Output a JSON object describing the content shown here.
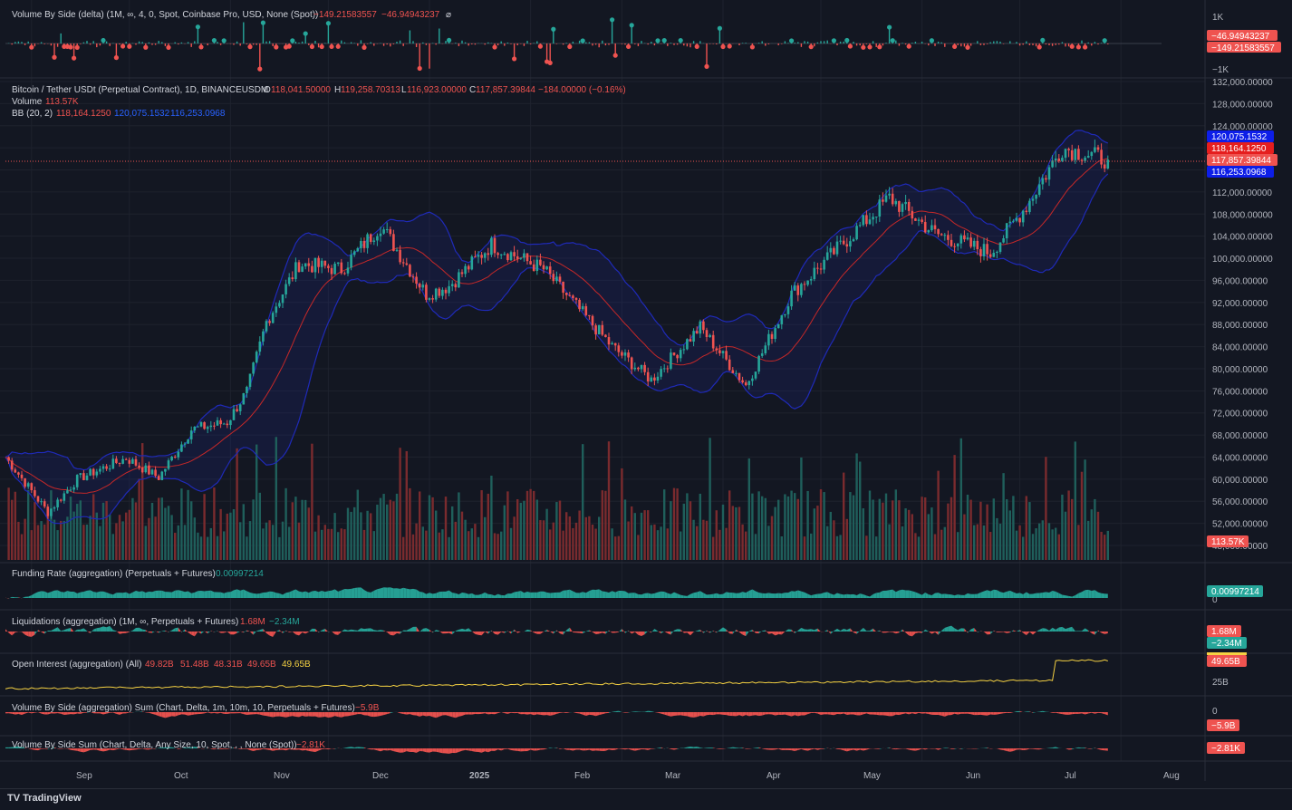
{
  "footer": {
    "brand": "TradingView",
    "brand_icon": "TV"
  },
  "colors": {
    "up": "#26a69a",
    "down": "#ef5350",
    "bb_band": "#1f2ab8",
    "bb_basis": "#c62828",
    "oi_line": "#f5d142",
    "bg": "#131722",
    "grid": "#1e222d"
  },
  "panes": {
    "delta": {
      "title": "Volume By Side (delta) (1M, ∞, 4, 0, Spot, Coinbase Pro, USD, None (Spot))",
      "v1": "−149.21583557",
      "v2": "−46.94943237",
      "v3": "⌀",
      "axis": [
        "1K",
        "−1K"
      ],
      "tags": [
        "−46.94943237",
        "−149.21583557"
      ]
    },
    "main": {
      "title": "Bitcoin / Tether USDt (Perpetual Contract), 1D, BINANCEUSDM",
      "o_label": "O",
      "o": "118,041.50000",
      "h_label": "H",
      "h": "119,258.70313",
      "l_label": "L",
      "l": "116,923.00000",
      "c_label": "C",
      "c": "117,857.39844",
      "chg": "−184.00000 (−0.16%)",
      "volume_label": "Volume",
      "volume": "113.57K",
      "bb_label": "BB (20, 2)",
      "bb_basis": "118,164.1250",
      "bb_upper": "120,075.1532",
      "bb_lower": "116,253.0968",
      "axis": [
        "132,000.00000",
        "128,000.00000",
        "124,000.00000",
        "120,000.00000",
        "116,000.00000",
        "112,000.00000",
        "108,000.00000",
        "104,000.00000",
        "100,000.00000",
        "96,000.00000",
        "92,000.00000",
        "88,000.00000",
        "84,000.00000",
        "80,000.00000",
        "76,000.00000",
        "72,000.00000",
        "68,000.00000",
        "64,000.00000",
        "60,000.00000",
        "56,000.00000",
        "52,000.00000",
        "48,000.00000"
      ],
      "tags": {
        "upper": "120,075.1532",
        "basis": "118,164.1250",
        "close": "117,857.39844",
        "lower": "116,253.0968",
        "volume": "113.57K"
      }
    },
    "funding": {
      "title": "Funding Rate (aggregation) (Perpetuals + Futures)",
      "value": "0.00997214",
      "tag": "0.00997214",
      "axis0": "0"
    },
    "liq": {
      "title": "Liquidations (aggregation) (1M, ∞, Perpetuals + Futures)",
      "v1": "1.68M",
      "v2": "−2.34M",
      "tags": [
        "1.68M",
        "−2.34M"
      ]
    },
    "oi": {
      "title": "Open Interest (aggregation) (All)",
      "o": "49.82B",
      "h": "51.48B",
      "l": "48.31B",
      "c": "49.65B",
      "last": "49.65B",
      "tag": "49.65B",
      "axis": "25B"
    },
    "vbs_agg": {
      "title": "Volume By Side (aggregation) Sum (Chart, Delta, 1m, 10m, 10, Perpetuals + Futures)",
      "value": "−5.9B",
      "tag": "−5.9B",
      "axis0": "0"
    },
    "vbs_sum": {
      "title": "Volume By Side Sum (Chart, Delta, Any Size, 10, Spot, , , None (Spot))",
      "value": "−2.81K",
      "tag": "−2.81K"
    }
  },
  "x_axis": [
    "Sep",
    "Oct",
    "Nov",
    "Dec",
    "2025",
    "Feb",
    "Mar",
    "Apr",
    "May",
    "Jun",
    "Jul",
    "Aug"
  ],
  "chart_data": {
    "type": "candlestick",
    "symbol": "BTCUSDT.P",
    "ylim": [
      46000,
      133000
    ],
    "approx_daily_close": {
      "dates": [
        "2024-08-24",
        "2024-09-06",
        "2024-09-15",
        "2024-09-30",
        "2024-10-10",
        "2024-10-20",
        "2024-10-31",
        "2024-11-06",
        "2024-11-12",
        "2024-11-22",
        "2024-12-05",
        "2024-12-17",
        "2024-12-31",
        "2025-01-07",
        "2025-01-20",
        "2025-02-05",
        "2025-02-26",
        "2025-03-10",
        "2025-03-25",
        "2025-04-08",
        "2025-04-22",
        "2025-05-10",
        "2025-05-22",
        "2025-06-05",
        "2025-06-22",
        "2025-07-03",
        "2025-07-14",
        "2025-07-28"
      ],
      "close": [
        64000,
        54000,
        60000,
        63800,
        60300,
        69000,
        70300,
        75900,
        88500,
        99000,
        98000,
        106000,
        93500,
        95000,
        102500,
        98000,
        84000,
        78000,
        87500,
        77000,
        93500,
        104000,
        111000,
        104500,
        101000,
        109500,
        120000,
        117857
      ]
    },
    "bands_last": {
      "upper": 120075.1532,
      "basis": 118164.125,
      "lower": 116253.0968
    },
    "last_close": 117857.39844
  }
}
